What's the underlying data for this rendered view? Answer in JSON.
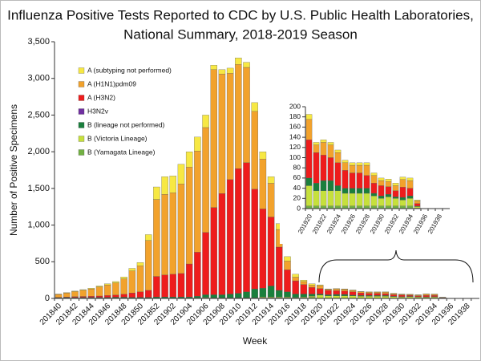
{
  "chart_data": [
    {
      "type": "bar",
      "stacked": true,
      "title": [
        "Influenza Positive Tests Reported to CDC by U.S. Public Health Laboratories,",
        "National Summary, 2018-2019 Season"
      ],
      "x_label": "Week",
      "y_label": "Number of Positive Specimens",
      "legend": "upper left",
      "categories": [
        "201840",
        null,
        "201842",
        null,
        "201844",
        null,
        "201846",
        null,
        "201848",
        null,
        "201850",
        null,
        "201852",
        null,
        "201902",
        null,
        "201904",
        null,
        "201906",
        null,
        "201908",
        null,
        "201910",
        null,
        "201912",
        null,
        "201914",
        null,
        "201916",
        null,
        "201918",
        null,
        "201920",
        null,
        "201922",
        null,
        "201924",
        null,
        "201926",
        null,
        "201928",
        null,
        "201930",
        null,
        "201932",
        null,
        "201934",
        null,
        "201936",
        null,
        "201938",
        null
      ],
      "ylim": [
        0,
        3500
      ],
      "yticks": [
        0,
        500,
        {
          "value": 1000,
          "label": "1,000"
        },
        {
          "value": 1500,
          "label": "1,500"
        },
        {
          "value": 2000,
          "label": "2,000"
        },
        {
          "value": 2500,
          "label": "2,500"
        },
        {
          "value": 3000,
          "label": "3,000"
        },
        {
          "value": 3500,
          "label": "3,500"
        }
      ],
      "series": [
        {
          "name": "A (subtyping not performed)",
          "color": "#f7e843",
          "values": [
            5,
            5,
            6,
            8,
            10,
            12,
            15,
            18,
            25,
            35,
            45,
            80,
            170,
            240,
            230,
            270,
            210,
            190,
            170,
            60,
            60,
            70,
            90,
            70,
            120,
            100,
            90,
            80,
            60,
            40,
            20,
            20,
            10,
            5,
            5,
            5,
            5,
            5,
            5,
            5,
            5,
            5,
            5,
            5,
            5,
            5,
            5,
            2,
            0,
            0,
            0,
            0
          ]
        },
        {
          "name": "A (H1N1)pdm09",
          "color": "#f2a22c",
          "values": [
            40,
            55,
            70,
            85,
            100,
            125,
            145,
            165,
            210,
            300,
            355,
            680,
            1050,
            1100,
            1110,
            1220,
            1320,
            1380,
            1430,
            1880,
            1630,
            1450,
            1420,
            1300,
            1060,
            680,
            460,
            240,
            120,
            50,
            40,
            30,
            40,
            15,
            25,
            25,
            20,
            15,
            15,
            15,
            20,
            15,
            10,
            10,
            10,
            15,
            15,
            5,
            0,
            0,
            0,
            0
          ]
        },
        {
          "name": "A (H3N2)",
          "color": "#ee1c1c",
          "values": [
            5,
            8,
            10,
            12,
            15,
            18,
            25,
            30,
            40,
            60,
            75,
            95,
            280,
            300,
            310,
            320,
            450,
            600,
            850,
            1190,
            1380,
            1560,
            1700,
            1760,
            1360,
            1080,
            940,
            590,
            300,
            180,
            130,
            90,
            75,
            60,
            50,
            45,
            45,
            35,
            30,
            30,
            25,
            20,
            20,
            15,
            12,
            20,
            15,
            5,
            0,
            0,
            0,
            0
          ]
        },
        {
          "name": "H3N2v",
          "color": "#7030a0",
          "values": [
            0,
            0,
            0,
            0,
            0,
            0,
            0,
            0,
            0,
            0,
            0,
            0,
            0,
            0,
            0,
            0,
            0,
            0,
            0,
            0,
            0,
            0,
            0,
            0,
            0,
            0,
            0,
            0,
            0,
            0,
            0,
            0,
            0,
            0,
            0,
            0,
            0,
            0,
            0,
            0,
            0,
            0,
            0,
            0,
            0,
            0,
            0,
            0,
            0,
            0,
            0,
            0
          ]
        },
        {
          "name": "B (lineage not performed)",
          "color": "#1a7f3c",
          "values": [
            5,
            6,
            7,
            8,
            8,
            8,
            8,
            10,
            10,
            10,
            10,
            10,
            15,
            15,
            15,
            15,
            15,
            20,
            35,
            40,
            40,
            50,
            60,
            80,
            120,
            120,
            150,
            90,
            70,
            45,
            40,
            30,
            15,
            15,
            20,
            20,
            10,
            10,
            10,
            10,
            10,
            5,
            5,
            5,
            3,
            5,
            5,
            1,
            0,
            0,
            0,
            0
          ]
        },
        {
          "name": "B (Victoria Lineage)",
          "color": "#c6e03c",
          "values": [
            3,
            3,
            4,
            4,
            4,
            4,
            4,
            4,
            4,
            3,
            3,
            3,
            3,
            3,
            3,
            3,
            3,
            5,
            8,
            5,
            5,
            5,
            5,
            5,
            5,
            10,
            10,
            10,
            10,
            8,
            10,
            15,
            40,
            30,
            30,
            30,
            30,
            25,
            25,
            25,
            25,
            20,
            15,
            18,
            15,
            12,
            15,
            3,
            0,
            0,
            0,
            0
          ]
        },
        {
          "name": "B (Yamagata Lineage)",
          "color": "#72b043",
          "values": [
            2,
            3,
            3,
            3,
            3,
            3,
            3,
            3,
            3,
            2,
            2,
            2,
            2,
            2,
            2,
            2,
            2,
            5,
            7,
            5,
            5,
            5,
            5,
            5,
            5,
            10,
            10,
            10,
            10,
            7,
            10,
            15,
            5,
            5,
            5,
            5,
            5,
            5,
            5,
            5,
            5,
            5,
            5,
            5,
            5,
            5,
            5,
            1,
            0,
            0,
            0,
            0
          ]
        }
      ]
    },
    {
      "type": "bar",
      "stacked": true,
      "categories": [
        "201920",
        null,
        "201922",
        null,
        "201924",
        null,
        "201926",
        null,
        "201928",
        null,
        "201930",
        null,
        "201932",
        null,
        "201934",
        null,
        "201936",
        null,
        "201938",
        null
      ],
      "ylim": [
        0,
        200
      ],
      "yticks": [
        0,
        20,
        40,
        60,
        80,
        100,
        120,
        140,
        160,
        180,
        200
      ],
      "series": [
        {
          "color": "#f7e843",
          "values": [
            10,
            5,
            5,
            5,
            5,
            5,
            5,
            5,
            5,
            5,
            5,
            5,
            5,
            5,
            5,
            2,
            0,
            0,
            0,
            0
          ]
        },
        {
          "color": "#f2a22c",
          "values": [
            40,
            15,
            25,
            25,
            20,
            15,
            15,
            15,
            20,
            15,
            10,
            10,
            10,
            15,
            15,
            5,
            0,
            0,
            0,
            0
          ]
        },
        {
          "color": "#ee1c1c",
          "values": [
            75,
            60,
            50,
            45,
            45,
            35,
            30,
            30,
            25,
            20,
            20,
            15,
            12,
            20,
            15,
            5,
            0,
            0,
            0,
            0
          ]
        },
        {
          "color": "#7030a0",
          "values": [
            0,
            0,
            0,
            0,
            0,
            0,
            0,
            0,
            0,
            0,
            0,
            0,
            0,
            0,
            0,
            0,
            0,
            0,
            0,
            0
          ]
        },
        {
          "color": "#1a7f3c",
          "values": [
            15,
            15,
            20,
            20,
            10,
            10,
            10,
            10,
            10,
            5,
            5,
            5,
            3,
            5,
            5,
            1,
            0,
            0,
            0,
            0
          ]
        },
        {
          "color": "#c6e03c",
          "values": [
            40,
            30,
            30,
            30,
            30,
            25,
            25,
            25,
            25,
            20,
            15,
            18,
            15,
            12,
            15,
            3,
            0,
            0,
            0,
            0
          ]
        },
        {
          "color": "#72b043",
          "values": [
            5,
            5,
            5,
            5,
            5,
            5,
            5,
            5,
            5,
            5,
            5,
            5,
            5,
            5,
            5,
            1,
            0,
            0,
            0,
            0
          ]
        }
      ]
    }
  ]
}
